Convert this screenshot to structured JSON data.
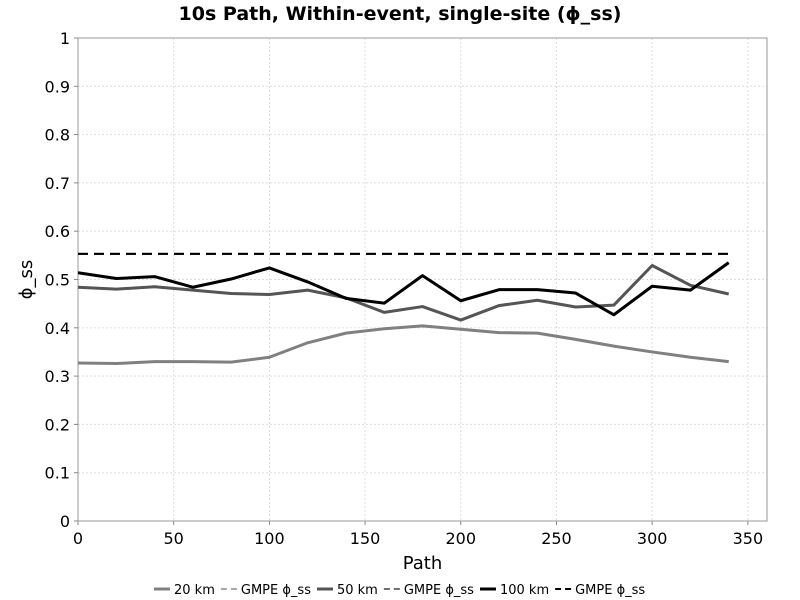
{
  "chart_data": {
    "type": "line",
    "title": "10s Path, Within-event, single-site (ϕ_ss)",
    "xlabel": "Path",
    "ylabel": "ϕ_ss",
    "xlim": [
      0,
      360
    ],
    "ylim": [
      0,
      1
    ],
    "x_ticks": [
      "0",
      "50",
      "100",
      "150",
      "200",
      "250",
      "300",
      "350"
    ],
    "y_ticks": [
      "0",
      "0.1",
      "0.2",
      "0.3",
      "0.4",
      "0.5",
      "0.6",
      "0.7",
      "0.8",
      "0.9",
      "1"
    ],
    "grid": true,
    "legend_position": "bottom",
    "x": [
      0,
      20,
      40,
      60,
      80,
      100,
      120,
      140,
      160,
      180,
      200,
      220,
      240,
      260,
      280,
      300,
      320,
      340
    ],
    "series": [
      {
        "name": "20 km",
        "color": "#808080",
        "style": "solid",
        "values": [
          0.327,
          0.326,
          0.33,
          0.33,
          0.329,
          0.339,
          0.369,
          0.389,
          0.398,
          0.404,
          0.397,
          0.39,
          0.389,
          0.376,
          0.362,
          0.35,
          0.339,
          0.33
        ]
      },
      {
        "name": "GMPE ϕ_ss",
        "color": "#a8a8a8",
        "style": "dashed",
        "values": [
          0.553,
          0.553,
          0.553,
          0.553,
          0.553,
          0.553,
          0.553,
          0.553,
          0.553,
          0.553,
          0.553,
          0.553,
          0.553,
          0.553,
          0.553,
          0.553,
          0.553,
          0.553
        ]
      },
      {
        "name": "50 km",
        "color": "#555555",
        "style": "solid",
        "values": [
          0.484,
          0.48,
          0.485,
          0.478,
          0.471,
          0.469,
          0.478,
          0.462,
          0.432,
          0.444,
          0.416,
          0.446,
          0.457,
          0.443,
          0.447,
          0.529,
          0.488,
          0.47
        ]
      },
      {
        "name": "GMPE ϕ_ss",
        "color": "#707070",
        "style": "dashed",
        "values": [
          0.553,
          0.553,
          0.553,
          0.553,
          0.553,
          0.553,
          0.553,
          0.553,
          0.553,
          0.553,
          0.553,
          0.553,
          0.553,
          0.553,
          0.553,
          0.553,
          0.553,
          0.553
        ]
      },
      {
        "name": "100 km",
        "color": "#000000",
        "style": "solid",
        "values": [
          0.514,
          0.502,
          0.506,
          0.484,
          0.501,
          0.524,
          0.495,
          0.461,
          0.451,
          0.508,
          0.456,
          0.479,
          0.479,
          0.472,
          0.427,
          0.486,
          0.478,
          0.535
        ]
      },
      {
        "name": "GMPE ϕ_ss",
        "color": "#000000",
        "style": "dashed",
        "values": [
          0.553,
          0.553,
          0.553,
          0.553,
          0.553,
          0.553,
          0.553,
          0.553,
          0.553,
          0.553,
          0.553,
          0.553,
          0.553,
          0.553,
          0.553,
          0.553,
          0.553,
          0.553
        ]
      }
    ]
  }
}
